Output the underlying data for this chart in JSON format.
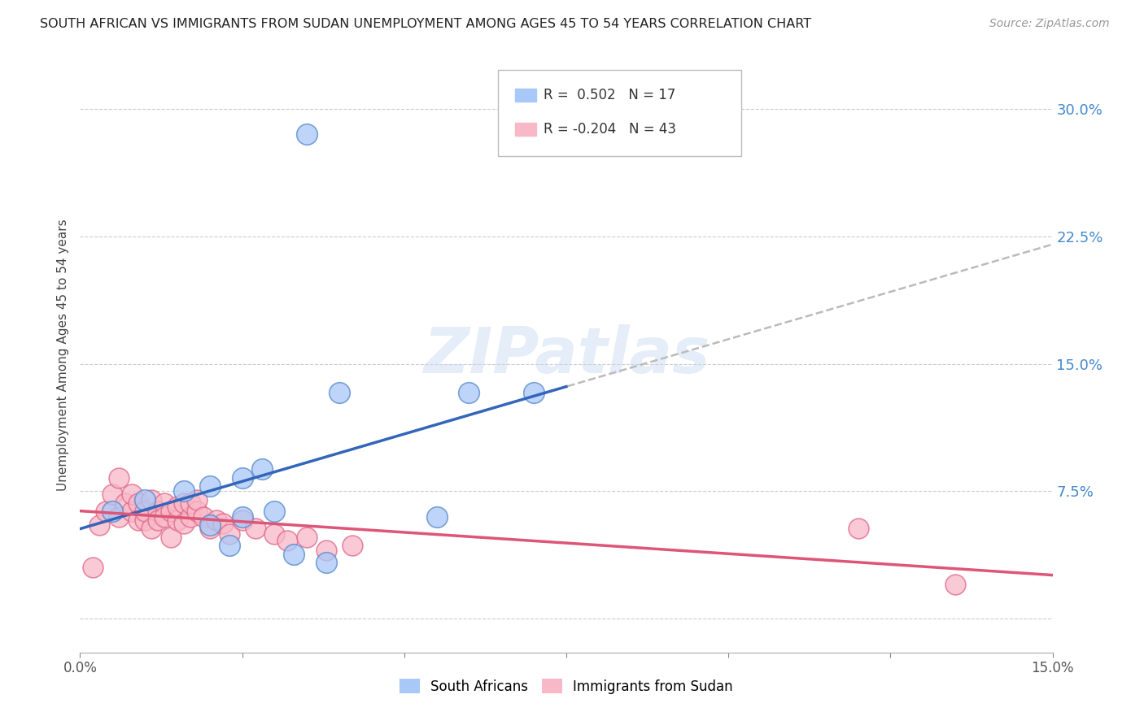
{
  "title": "SOUTH AFRICAN VS IMMIGRANTS FROM SUDAN UNEMPLOYMENT AMONG AGES 45 TO 54 YEARS CORRELATION CHART",
  "source": "Source: ZipAtlas.com",
  "ylabel": "Unemployment Among Ages 45 to 54 years",
  "xlim": [
    0.0,
    0.15
  ],
  "ylim": [
    -0.02,
    0.33
  ],
  "xtick_positions": [
    0.0,
    0.025,
    0.05,
    0.075,
    0.1,
    0.125,
    0.15
  ],
  "xtick_labels": [
    "0.0%",
    "",
    "",
    "",
    "",
    "",
    "15.0%"
  ],
  "ytick_positions": [
    0.0,
    0.075,
    0.15,
    0.225,
    0.3
  ],
  "ytick_labels": [
    "",
    "7.5%",
    "15.0%",
    "22.5%",
    "30.0%"
  ],
  "south_africans_x": [
    0.035,
    0.005,
    0.01,
    0.016,
    0.02,
    0.025,
    0.028,
    0.02,
    0.025,
    0.03,
    0.04,
    0.06,
    0.07,
    0.055,
    0.023,
    0.033,
    0.038
  ],
  "south_africans_y": [
    0.285,
    0.063,
    0.07,
    0.075,
    0.078,
    0.083,
    0.088,
    0.055,
    0.06,
    0.063,
    0.133,
    0.133,
    0.133,
    0.06,
    0.043,
    0.038,
    0.033
  ],
  "immigrants_x": [
    0.002,
    0.003,
    0.004,
    0.005,
    0.006,
    0.006,
    0.007,
    0.008,
    0.008,
    0.009,
    0.009,
    0.01,
    0.01,
    0.011,
    0.011,
    0.012,
    0.012,
    0.013,
    0.013,
    0.014,
    0.014,
    0.015,
    0.015,
    0.016,
    0.016,
    0.017,
    0.017,
    0.018,
    0.018,
    0.019,
    0.02,
    0.021,
    0.022,
    0.023,
    0.025,
    0.027,
    0.03,
    0.032,
    0.035,
    0.038,
    0.042,
    0.12,
    0.135
  ],
  "immigrants_y": [
    0.03,
    0.055,
    0.063,
    0.073,
    0.083,
    0.06,
    0.068,
    0.063,
    0.073,
    0.068,
    0.058,
    0.058,
    0.063,
    0.07,
    0.053,
    0.063,
    0.058,
    0.068,
    0.06,
    0.048,
    0.063,
    0.058,
    0.066,
    0.056,
    0.068,
    0.06,
    0.068,
    0.063,
    0.07,
    0.06,
    0.053,
    0.058,
    0.056,
    0.05,
    0.058,
    0.053,
    0.05,
    0.046,
    0.048,
    0.04,
    0.043,
    0.053,
    0.02
  ],
  "sa_color": "#a8c8f8",
  "sa_edge_color": "#5588cc",
  "im_color": "#f8b8c8",
  "im_edge_color": "#e06888",
  "sa_line_color": "#3366bb",
  "im_line_color": "#dd5577",
  "dash_line_color": "#bbbbbb",
  "R_sa": 0.502,
  "N_sa": 17,
  "R_im": -0.204,
  "N_im": 43,
  "watermark": "ZIPatlas",
  "legend_sa_label": "South Africans",
  "legend_im_label": "Immigrants from Sudan",
  "legend_sa_color": "#a8c8f8",
  "legend_im_color": "#f8b8c8"
}
